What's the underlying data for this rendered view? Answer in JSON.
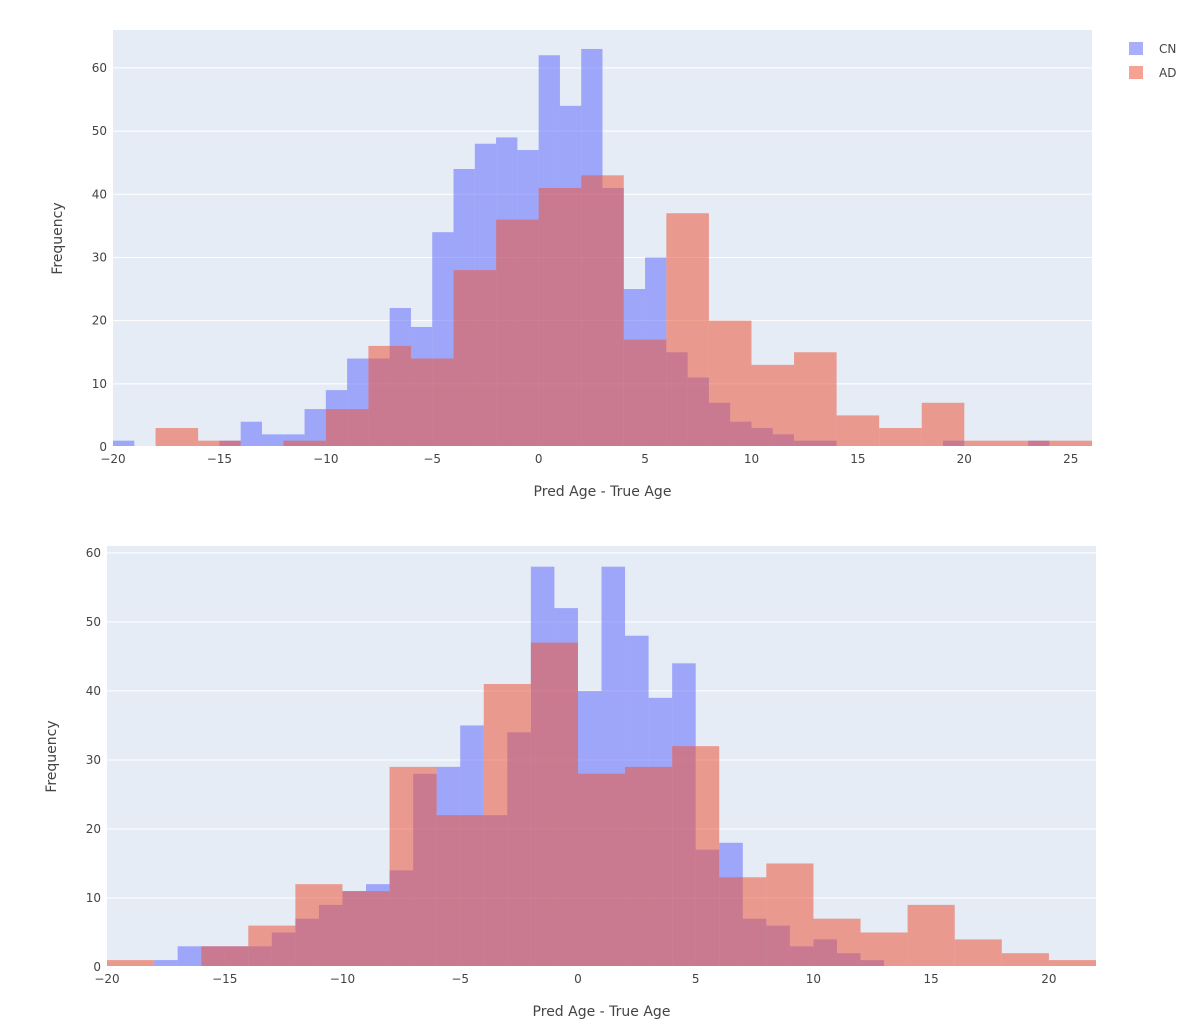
{
  "legend": [
    {
      "name": "CN",
      "color": "#636efa"
    },
    {
      "name": "AD",
      "color": "#ef553b"
    }
  ],
  "colors": {
    "plot_bg": "#e5ecf6",
    "grid": "#ffffff",
    "CN": "#636efa",
    "AD": "#ef553b"
  },
  "chart_data": [
    {
      "type": "histogram",
      "xlabel": "Pred Age - True Age",
      "ylabel": "Frequency",
      "xlim": [
        -20,
        26
      ],
      "ylim": [
        0,
        66
      ],
      "xticks": [
        -20,
        -15,
        -10,
        -5,
        0,
        5,
        10,
        15,
        20,
        25
      ],
      "xtick_labels": [
        "−20",
        "−15",
        "−10",
        "−5",
        "0",
        "5",
        "10",
        "15",
        "20",
        "25"
      ],
      "yticks": [
        0,
        10,
        20,
        30,
        40,
        50,
        60
      ],
      "grid": true,
      "legend_position": "top-right",
      "series": [
        {
          "name": "CN",
          "bin_start": -20,
          "bin_width": 1,
          "values": [
            1,
            0,
            0,
            0,
            0,
            1,
            4,
            2,
            2,
            6,
            9,
            14,
            14,
            22,
            19,
            34,
            44,
            48,
            49,
            47,
            62,
            54,
            63,
            41,
            25,
            30,
            15,
            11,
            7,
            4,
            3,
            2,
            1,
            1,
            0,
            0,
            0,
            0,
            0,
            1,
            0,
            0,
            0,
            1,
            0
          ]
        },
        {
          "name": "AD",
          "bin_start": -18,
          "bin_width": 2,
          "values": [
            3,
            1,
            0,
            1,
            6,
            16,
            14,
            28,
            36,
            41,
            43,
            17,
            37,
            20,
            13,
            15,
            5,
            3,
            7,
            1,
            1,
            1,
            1
          ]
        }
      ]
    },
    {
      "type": "histogram",
      "xlabel": "Pred Age - True Age",
      "ylabel": "Frequency",
      "xlim": [
        -20,
        22
      ],
      "ylim": [
        0,
        61
      ],
      "xticks": [
        -20,
        -15,
        -10,
        -5,
        0,
        5,
        10,
        15,
        20
      ],
      "xtick_labels": [
        "−20",
        "−15",
        "−10",
        "−5",
        "0",
        "5",
        "10",
        "15",
        "20"
      ],
      "yticks": [
        0,
        10,
        20,
        30,
        40,
        50,
        60
      ],
      "grid": true,
      "series": [
        {
          "name": "CN",
          "bin_start": -20,
          "bin_width": 1,
          "values": [
            0,
            0,
            1,
            3,
            3,
            3,
            3,
            5,
            7,
            9,
            11,
            12,
            14,
            28,
            29,
            35,
            22,
            34,
            58,
            52,
            40,
            58,
            48,
            39,
            44,
            17,
            18,
            7,
            6,
            3,
            4,
            2,
            1,
            0,
            0,
            0,
            0,
            0,
            0,
            0,
            0,
            0
          ]
        },
        {
          "name": "AD",
          "bin_start": -20,
          "bin_width": 2,
          "values": [
            1,
            0,
            3,
            6,
            12,
            11,
            29,
            22,
            41,
            47,
            28,
            29,
            32,
            13,
            15,
            7,
            5,
            9,
            4,
            2,
            1
          ]
        }
      ]
    }
  ]
}
